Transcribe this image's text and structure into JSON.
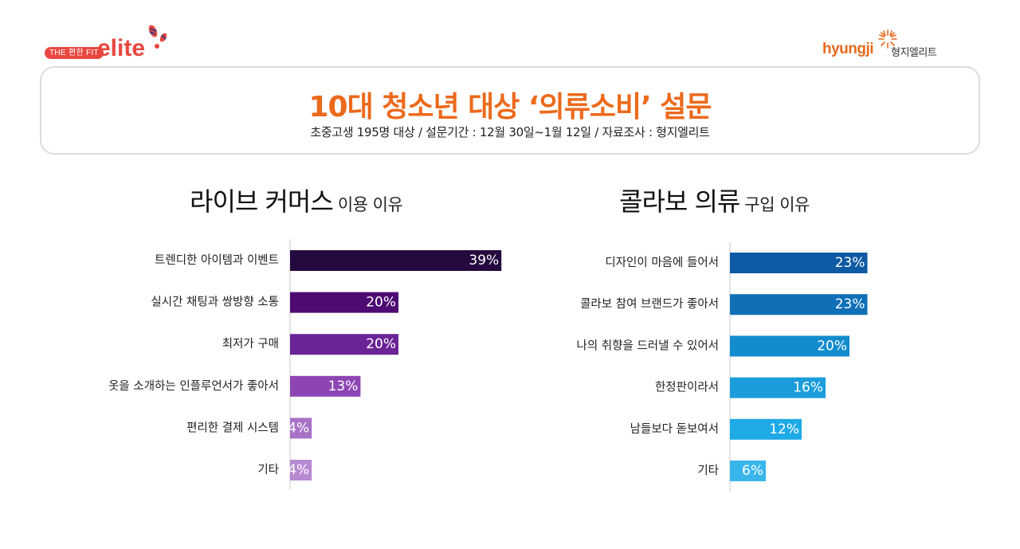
{
  "logos": {
    "left": {
      "pill_text": "THE 편한 FIT",
      "word": "elite"
    },
    "right": {
      "word": "hyungji",
      "korean": "형지엘리트"
    }
  },
  "header": {
    "title": "10대 청소년 대상 ‘의류소비’ 설문",
    "subtitle": "초중고생 195명 대상 / 설문기간 : 12월 30일~1월 12일 / 자료조사 : 형지엘리트"
  },
  "colors": {
    "title": "#ec6a1c",
    "left_bars": [
      "#240a3e",
      "#4c0a72",
      "#6b2495",
      "#8e45b4",
      "#a872c8",
      "#b88ad2"
    ],
    "right_bars": [
      "#0f5aa4",
      "#0f70b8",
      "#138ccd",
      "#1b9ddc",
      "#1eaae6",
      "#38b6ec"
    ]
  },
  "chart_data": [
    {
      "type": "bar",
      "orientation": "horizontal",
      "title_main": "라이브 커머스",
      "title_sub": "이용 이유",
      "categories": [
        "트렌디한 아이템과 이벤트",
        "실시간 채팅과 쌍방향 소통",
        "최저가 구매",
        "옷을 소개하는 인플루언서가 좋아서",
        "편리한 결제 시스템",
        "기타"
      ],
      "values": [
        39,
        20,
        20,
        13,
        4,
        4
      ],
      "value_labels": [
        "39%",
        "20%",
        "20%",
        "13%",
        "4%",
        "4%"
      ],
      "unit": "%",
      "xlim": [
        0,
        40
      ],
      "grid": false,
      "legend": "none"
    },
    {
      "type": "bar",
      "orientation": "horizontal",
      "title_main": "콜라보 의류",
      "title_sub": "구입 이유",
      "categories": [
        "디자인이 마음에 들어서",
        "콜라보 참여 브랜드가 좋아서",
        "나의 취향을 드러낼 수 있어서",
        "한정판이라서",
        "남들보다 돋보여서",
        "기타"
      ],
      "values": [
        23,
        23,
        20,
        16,
        12,
        6
      ],
      "value_labels": [
        "23%",
        "23%",
        "20%",
        "16%",
        "12%",
        "6%"
      ],
      "unit": "%",
      "xlim": [
        0,
        40
      ],
      "grid": false,
      "legend": "none"
    }
  ]
}
